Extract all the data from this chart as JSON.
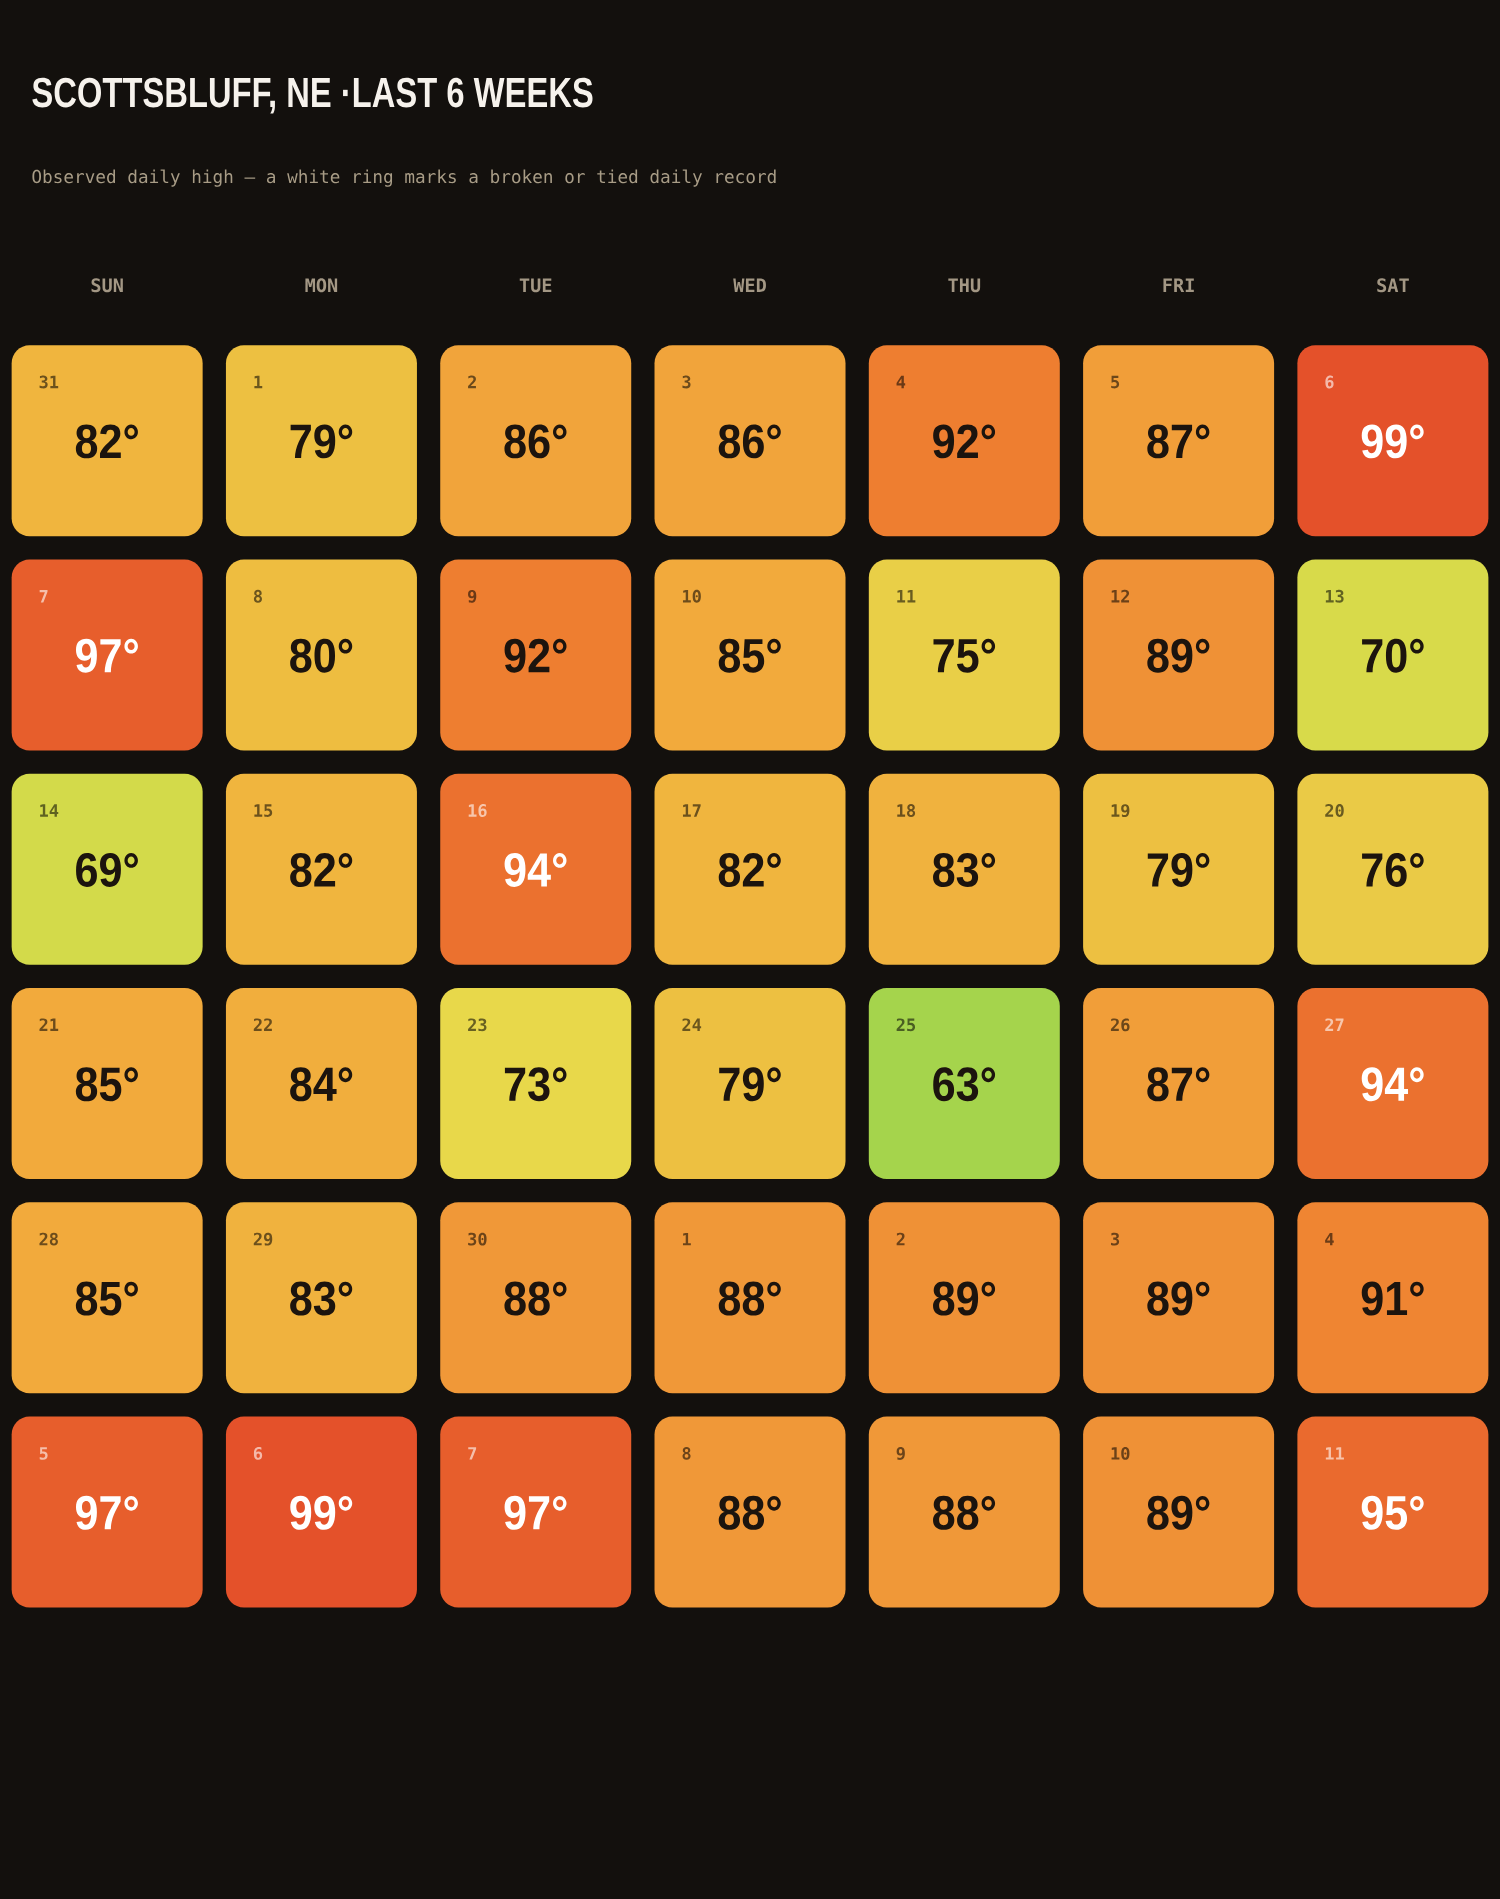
{
  "chart_data": {
    "type": "heatmap",
    "title": "SCOTTSBLUFF, NE ·LAST 6 WEEKS",
    "subtitle": "Observed daily high — a white ring marks a broken or tied daily record",
    "categories": [
      "SUN",
      "MON",
      "TUE",
      "WED",
      "THU",
      "FRI",
      "SAT"
    ],
    "y_categories": [
      null,
      null,
      null,
      null,
      null,
      null
    ],
    "cells": [
      [
        82,
        79,
        86,
        86,
        92,
        87,
        99
      ],
      [
        97,
        80,
        92,
        85,
        75,
        89,
        70
      ],
      [
        69,
        82,
        94,
        82,
        83,
        79,
        76
      ],
      [
        85,
        84,
        73,
        79,
        63,
        87,
        94
      ],
      [
        85,
        83,
        88,
        88,
        89,
        89,
        91
      ],
      [
        97,
        99,
        97,
        88,
        88,
        89,
        95
      ]
    ],
    "cell_labels": [
      [
        "82°",
        "79°",
        "86°",
        "86°",
        "92°",
        "87°",
        "99°"
      ],
      [
        "97°",
        "80°",
        "92°",
        "85°",
        "75°",
        "89°",
        "70°"
      ],
      [
        "69°",
        "82°",
        "94°",
        "82°",
        "83°",
        "79°",
        "76°"
      ],
      [
        "85°",
        "84°",
        "73°",
        "79°",
        "63°",
        "87°",
        "94°"
      ],
      [
        "85°",
        "83°",
        "88°",
        "88°",
        "89°",
        "89°",
        "91°"
      ],
      [
        "97°",
        "99°",
        "97°",
        "88°",
        "88°",
        "89°",
        "95°"
      ]
    ],
    "annotations": [
      "31",
      "1",
      "2",
      "3",
      "4",
      "5",
      "6",
      "7",
      "8",
      "9",
      "10",
      "11",
      "12",
      "13",
      "14",
      "15",
      "16",
      "17",
      "18",
      "19",
      "20",
      "21",
      "22",
      "23",
      "24",
      "25",
      "26",
      "27",
      "28",
      "29",
      "30",
      "1",
      "2",
      "3",
      "4",
      "5",
      "6",
      "7",
      "8",
      "9",
      "10",
      "11"
    ]
  }
}
